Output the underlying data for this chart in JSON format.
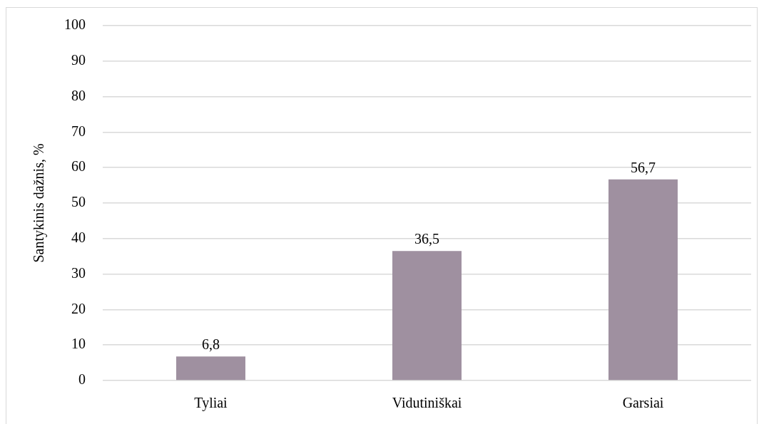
{
  "chart_data": {
    "type": "bar",
    "ylabel": "Santykinis dažnis, %",
    "categories": [
      "Tyliai",
      "Vidutiniškai",
      "Garsiai"
    ],
    "values": [
      6.8,
      36.5,
      56.7
    ],
    "color": "#9f90a0",
    "value_labels": [
      "6,8",
      "36,5",
      "56,7"
    ],
    "ylim": [
      0,
      100
    ],
    "yticks": [
      0,
      10,
      20,
      30,
      40,
      50,
      60,
      70,
      80,
      90,
      100
    ],
    "grid": "y",
    "legend": false
  }
}
